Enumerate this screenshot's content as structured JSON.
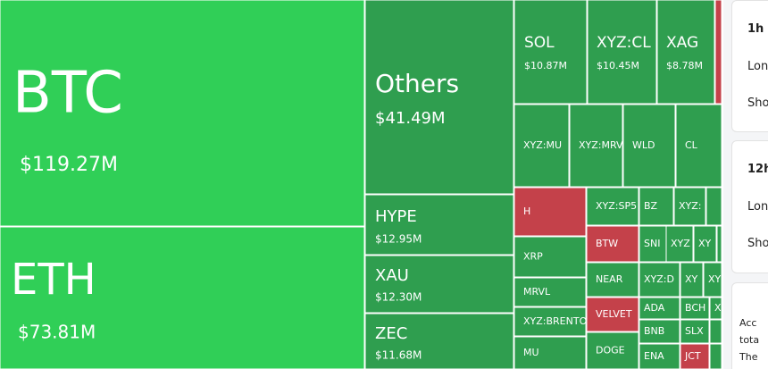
{
  "tiles": [
    {
      "label": "BTC",
      "value": "$119.27M",
      "color": "#30cf57"
    },
    {
      "label": "ETH",
      "value": "$73.81M",
      "color": "#30cf57"
    },
    {
      "label": "Others",
      "value": "$41.49M",
      "color": "#2f9e4f"
    },
    {
      "label": "HYPE",
      "value": "$12.95M",
      "color": "#2f9e4f"
    },
    {
      "label": "XAU",
      "value": "$12.30M",
      "color": "#2f9e4f"
    },
    {
      "label": "ZEC",
      "value": "$11.68M",
      "color": "#2f9e4f"
    },
    {
      "label": "SOL",
      "value": "$10.87M",
      "color": "#2f9e4f"
    },
    {
      "label": "XYZ:CL",
      "value": "$10.45M",
      "color": "#2f9e4f"
    },
    {
      "label": "XAG",
      "value": "$8.78M",
      "color": "#2f9e4f"
    },
    {
      "color": "#c4414a"
    },
    {
      "label": "XYZ:MU",
      "color": "#2f9e4f"
    },
    {
      "label": "XYZ:MRV",
      "color": "#2f9e4f"
    },
    {
      "label": "WLD",
      "color": "#2f9e4f"
    },
    {
      "label": "CL",
      "color": "#2f9e4f"
    },
    {
      "label": "H",
      "color": "#c4414a"
    },
    {
      "label": "XYZ:SP5",
      "color": "#2f9e4f"
    },
    {
      "label": "BZ",
      "color": "#2f9e4f"
    },
    {
      "label": "XYZ:",
      "color": "#2f9e4f"
    },
    {
      "color": "#2f9e4f"
    },
    {
      "label": "XRP",
      "color": "#2f9e4f"
    },
    {
      "label": "BTW",
      "color": "#c4414a"
    },
    {
      "label": "SNI",
      "color": "#2f9e4f"
    },
    {
      "label": "XYZ",
      "color": "#2f9e4f"
    },
    {
      "label": "XY",
      "color": "#2f9e4f"
    },
    {
      "color": "#2f9e4f"
    },
    {
      "label": "MRVL",
      "color": "#2f9e4f"
    },
    {
      "label": "NEAR",
      "color": "#2f9e4f"
    },
    {
      "label": "XYZ:D",
      "color": "#2f9e4f"
    },
    {
      "label": "XY",
      "color": "#2f9e4f"
    },
    {
      "label": "XY",
      "color": "#2f9e4f"
    },
    {
      "label": "XYZ:BRENTO",
      "color": "#2f9e4f"
    },
    {
      "label": "VELVET",
      "color": "#c4414a"
    },
    {
      "label": "ADA",
      "color": "#2f9e4f"
    },
    {
      "label": "BCH",
      "color": "#2f9e4f"
    },
    {
      "label": "X",
      "color": "#2f9e4f"
    },
    {
      "label": "MU",
      "color": "#2f9e4f"
    },
    {
      "label": "DOGE",
      "color": "#2f9e4f"
    },
    {
      "label": "BNB",
      "color": "#2f9e4f"
    },
    {
      "label": "SLX",
      "color": "#2f9e4f"
    },
    {
      "color": "#2f9e4f"
    },
    {
      "label": "ENA",
      "color": "#2f9e4f"
    },
    {
      "label": "JCT",
      "color": "#c4414a"
    },
    {
      "color": "#2f9e4f"
    }
  ],
  "cards": [
    {
      "title": "1h",
      "lines": [
        "Lon",
        "Sho"
      ]
    },
    {
      "title": "12h",
      "lines": [
        "Lon",
        "Sho"
      ]
    },
    {
      "lines": [
        "Acc",
        "tota",
        "The"
      ]
    }
  ]
}
